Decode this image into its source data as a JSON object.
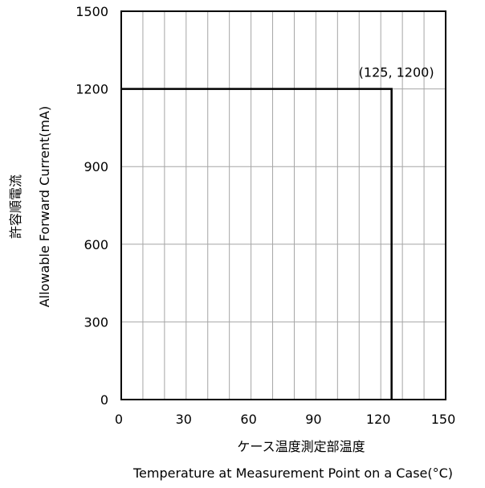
{
  "chart_data": {
    "type": "line",
    "xlabel_ja": "ケース温度測定部温度",
    "xlabel": "Temperature at Measurement Point on a Case(°C)",
    "ylabel_ja": "許容順電流",
    "ylabel": "Allowable Forward Current(mA)",
    "xlim": [
      0,
      150
    ],
    "ylim": [
      0,
      1500
    ],
    "x_ticks": [
      0,
      30,
      60,
      90,
      120,
      150
    ],
    "y_ticks": [
      0,
      300,
      600,
      900,
      1200,
      1500
    ],
    "x_minor_step": 10,
    "y_grid_step": 300,
    "grid": true,
    "series": [
      {
        "x": [
          0,
          125,
          125
        ],
        "y": [
          1200,
          1200,
          0
        ]
      }
    ],
    "annotation": {
      "text": "(125, 1200)",
      "x": 125,
      "y": 1200
    }
  }
}
